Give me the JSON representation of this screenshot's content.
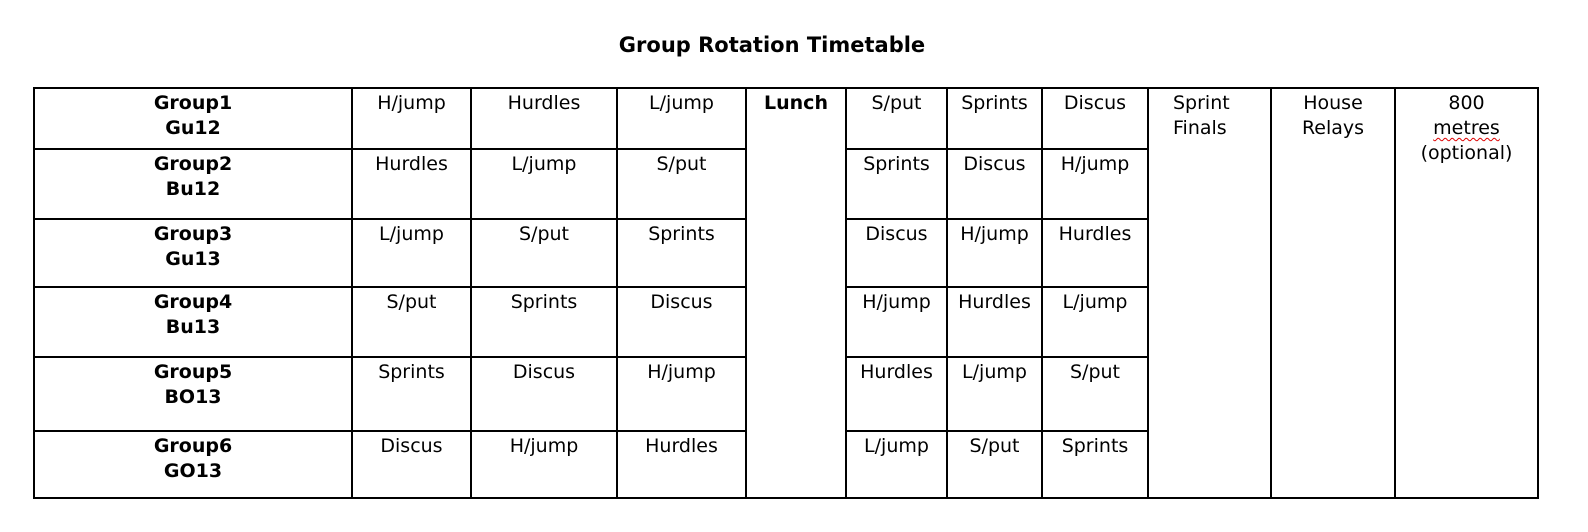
{
  "title": "Group Rotation Timetable",
  "lunch": "Lunch",
  "finals": [
    "Sprint",
    "Finals"
  ],
  "relays": [
    "House",
    "Relays"
  ],
  "metres": [
    "800",
    "metres",
    "(optional)"
  ],
  "rows": [
    {
      "group": "Group1",
      "code": "Gu12",
      "am": [
        "H/jump",
        "Hurdles",
        "L/jump"
      ],
      "pm": [
        "S/put",
        "Sprints",
        "Discus"
      ]
    },
    {
      "group": "Group2",
      "code": "Bu12",
      "am": [
        "Hurdles",
        "L/jump",
        "S/put"
      ],
      "pm": [
        "Sprints",
        "Discus",
        "H/jump"
      ]
    },
    {
      "group": "Group3",
      "code": "Gu13",
      "am": [
        "L/jump",
        "S/put",
        "Sprints"
      ],
      "pm": [
        "Discus",
        "H/jump",
        "Hurdles"
      ]
    },
    {
      "group": "Group4",
      "code": "Bu13",
      "am": [
        "S/put",
        "Sprints",
        "Discus"
      ],
      "pm": [
        "H/jump",
        "Hurdles",
        "L/jump"
      ]
    },
    {
      "group": "Group5",
      "code": "BO13",
      "am": [
        "Sprints",
        "Discus",
        "H/jump"
      ],
      "pm": [
        "Hurdles",
        "L/jump",
        "S/put"
      ]
    },
    {
      "group": "Group6",
      "code": "GO13",
      "am": [
        "Discus",
        "H/jump",
        "Hurdles"
      ],
      "pm": [
        "L/jump",
        "S/put",
        "Sprints"
      ]
    }
  ]
}
